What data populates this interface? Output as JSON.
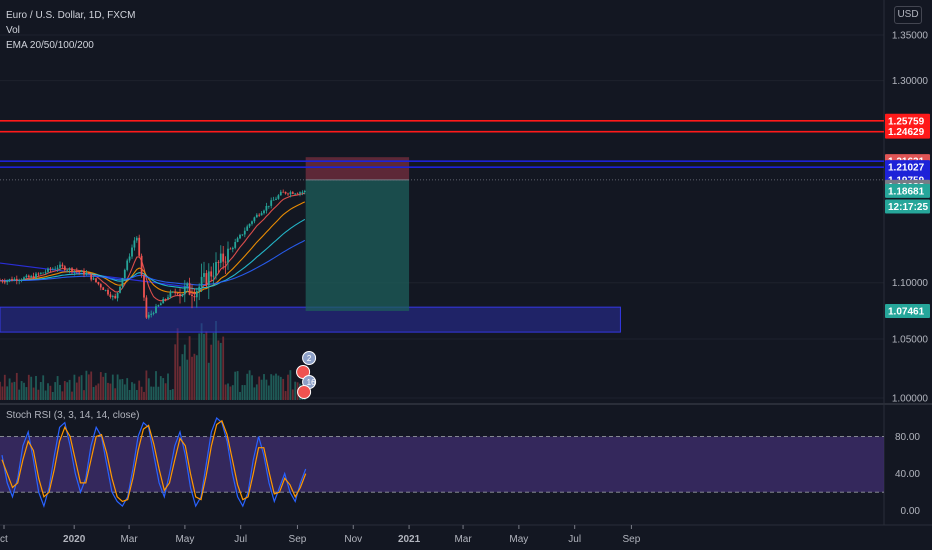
{
  "legend": {
    "symbol": "Euro / U.S. Dollar, 1D, FXCM",
    "vol": "Vol",
    "ema": "EMA 20/50/100/200",
    "stoch": "Stoch RSI (3, 3, 14, 14, close)"
  },
  "currency_button": "USD",
  "colors": {
    "background": "#131722",
    "up": "#26a69a",
    "down": "#ef5350",
    "red_line": "#ff1a1a",
    "blue_line": "#1d22d8",
    "zone_fill": "#2a2ea0",
    "target": "#1e5f5b",
    "stop": "#6b2b3b",
    "stoch_k": "#2962ff",
    "stoch_d": "#ff9800",
    "rsi_band": "#3b2b66"
  },
  "chart_data": [
    {
      "type": "candlestick",
      "title": "Euro / U.S. Dollar, 1D, FXCM",
      "price_axis": {
        "scale": "log",
        "ticks": [
          "1.35000",
          "1.30000",
          "1.10000",
          "1.05000",
          "1.00000"
        ]
      },
      "time_axis": {
        "ticks": [
          "ct",
          "2020",
          "Mar",
          "May",
          "Jul",
          "Sep",
          "Nov",
          "2021",
          "Mar",
          "May",
          "Jul",
          "Sep"
        ]
      },
      "close_series_approx": [
        {
          "date": "2019-10",
          "close": 1.102
        },
        {
          "date": "2019-11",
          "close": 1.105
        },
        {
          "date": "2019-12",
          "close": 1.115
        },
        {
          "date": "2020-01",
          "close": 1.108
        },
        {
          "date": "2020-02",
          "close": 1.085
        },
        {
          "date": "2020-03-09",
          "close": 1.145
        },
        {
          "date": "2020-03-20",
          "close": 1.068
        },
        {
          "date": "2020-04",
          "close": 1.09
        },
        {
          "date": "2020-05",
          "close": 1.095
        },
        {
          "date": "2020-06",
          "close": 1.125
        },
        {
          "date": "2020-07",
          "close": 1.16
        },
        {
          "date": "2020-08",
          "close": 1.185
        },
        {
          "date": "2020-09-10",
          "close": 1.186
        }
      ],
      "indicators": {
        "ema": [
          20,
          50,
          100,
          200
        ],
        "volume": true
      },
      "horizontal_lines": [
        {
          "price": 1.25759,
          "label": "1.25759",
          "color": "red"
        },
        {
          "price": 1.24629,
          "label": "1.24629",
          "color": "red"
        },
        {
          "price": 1.21631,
          "label": "1.21631",
          "color": "blue"
        },
        {
          "price": 1.21027,
          "label": "1.21027",
          "color": "blue"
        }
      ],
      "price_labels": [
        {
          "value": "1.25759",
          "price": 1.25759,
          "bg": "#ff1a1a"
        },
        {
          "value": "1.24629",
          "price": 1.24629,
          "bg": "#ff1a1a"
        },
        {
          "value": "1.21631",
          "price": 1.21631,
          "bg": "#e05555"
        },
        {
          "value": "1.21027",
          "price": 1.21027,
          "bg": "#1d22d8"
        },
        {
          "value": "1.19759",
          "price": 1.19759,
          "bg": "#1d22d8"
        },
        {
          "value": "1.19088",
          "price": 1.19088,
          "bg": "#787b86"
        },
        {
          "value": "1.18681",
          "price": 1.18681,
          "bg": "#26a69a"
        },
        {
          "value": "12:17:25",
          "price": 1.1715,
          "bg": "#26a69a"
        },
        {
          "value": "1.07461",
          "price": 1.07461,
          "bg": "#26a69a"
        }
      ],
      "support_zone": {
        "from_price": 1.056,
        "to_price": 1.078,
        "end_date": "2021-08-20"
      },
      "short_position": {
        "entry": 1.19759,
        "stop": 1.2203,
        "target": 1.07461,
        "start_date": "2020-09-10",
        "end_date": "2021-01-01"
      },
      "event_markers": [
        "2",
        "16"
      ]
    },
    {
      "type": "line",
      "title": "Stoch RSI (3, 3, 14, 14, close)",
      "ylim": [
        0,
        100
      ],
      "y_ticks": [
        "80.00",
        "40.00",
        "0.00"
      ],
      "bands": [
        20,
        80
      ],
      "series": [
        {
          "k": [
            60,
            30,
            15,
            35,
            70,
            85,
            55,
            20,
            5,
            25,
            60,
            90,
            95,
            70,
            40,
            20,
            35,
            70,
            90,
            80,
            50,
            20,
            10,
            5,
            15,
            45,
            80,
            95,
            90,
            60,
            30,
            15,
            40,
            70,
            85,
            60,
            25,
            5,
            15,
            50,
            85,
            100,
            95,
            75,
            40,
            15,
            5,
            20,
            55,
            80,
            60,
            30,
            10,
            25,
            40,
            20,
            10,
            30,
            45
          ],
          "d": [
            55,
            40,
            25,
            30,
            55,
            75,
            65,
            35,
            15,
            20,
            45,
            75,
            90,
            80,
            55,
            30,
            30,
            55,
            80,
            82,
            62,
            35,
            15,
            10,
            12,
            35,
            65,
            88,
            92,
            72,
            45,
            22,
            30,
            55,
            78,
            70,
            40,
            15,
            12,
            38,
            70,
            93,
            97,
            82,
            55,
            28,
            12,
            15,
            40,
            68,
            68,
            42,
            18,
            20,
            35,
            28,
            15,
            25,
            40
          ]
        }
      ]
    }
  ]
}
